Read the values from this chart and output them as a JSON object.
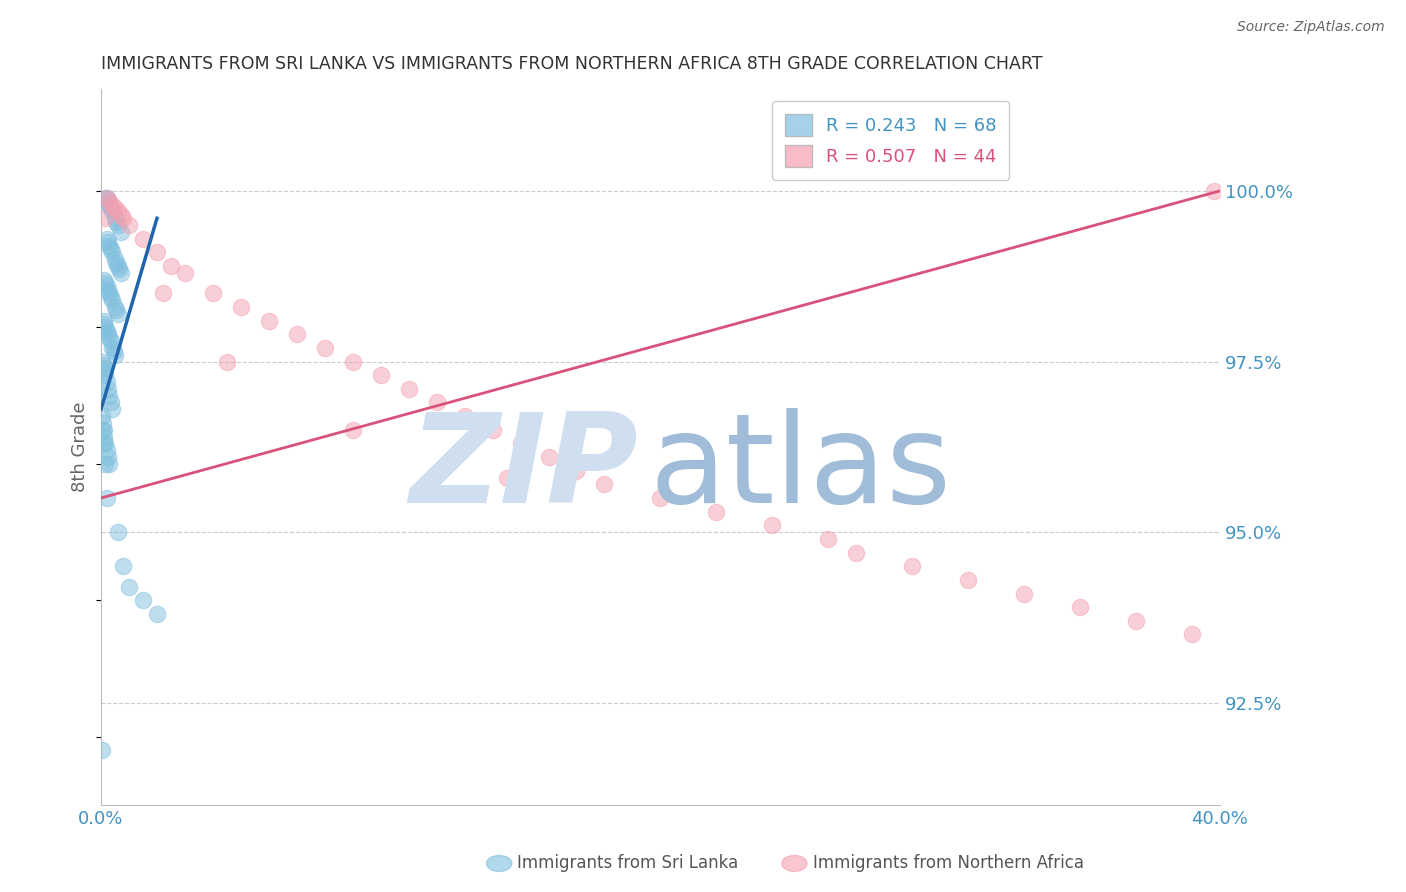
{
  "title": "IMMIGRANTS FROM SRI LANKA VS IMMIGRANTS FROM NORTHERN AFRICA 8TH GRADE CORRELATION CHART",
  "source": "Source: ZipAtlas.com",
  "ylabel": "8th Grade",
  "xlim": [
    0.0,
    40.0
  ],
  "ylim": [
    91.0,
    101.5
  ],
  "yticks": [
    92.5,
    95.0,
    97.5,
    100.0
  ],
  "ytick_labels": [
    "92.5%",
    "95.0%",
    "97.5%",
    "100.0%"
  ],
  "xticks": [
    0,
    10,
    20,
    30,
    40
  ],
  "xtick_labels": [
    "0.0%",
    "",
    "",
    "",
    "40.0%"
  ],
  "series1_label": "Immigrants from Sri Lanka",
  "series1_color": "#7fbfdf",
  "series1_line_color": "#2166ac",
  "series1_R": 0.243,
  "series1_N": 68,
  "series2_label": "Immigrants from Northern Africa",
  "series2_color": "#f4a0b0",
  "series2_line_color": "#d9527a",
  "series2_R": 0.507,
  "series2_N": 44,
  "axis_color": "#4393c3",
  "grid_color": "#cccccc",
  "title_color": "#333333",
  "watermark_zip_color": "#cfdff0",
  "watermark_atlas_color": "#a0bcd8",
  "background_color": "#ffffff",
  "series1_x": [
    0.15,
    0.2,
    0.25,
    0.3,
    0.35,
    0.4,
    0.5,
    0.55,
    0.6,
    0.7,
    0.2,
    0.25,
    0.3,
    0.35,
    0.4,
    0.5,
    0.55,
    0.6,
    0.65,
    0.7,
    0.1,
    0.15,
    0.2,
    0.25,
    0.3,
    0.35,
    0.4,
    0.5,
    0.55,
    0.6,
    0.1,
    0.12,
    0.15,
    0.2,
    0.25,
    0.3,
    0.35,
    0.4,
    0.45,
    0.5,
    0.05,
    0.08,
    0.1,
    0.12,
    0.15,
    0.2,
    0.25,
    0.3,
    0.35,
    0.4,
    0.05,
    0.07,
    0.1,
    0.12,
    0.15,
    0.2,
    0.25,
    0.3,
    0.08,
    0.12,
    0.15,
    0.2,
    0.6,
    0.8,
    1.0,
    1.5,
    2.0,
    0.05
  ],
  "series1_y": [
    99.9,
    99.9,
    99.85,
    99.8,
    99.75,
    99.7,
    99.6,
    99.55,
    99.5,
    99.4,
    99.3,
    99.25,
    99.2,
    99.15,
    99.1,
    99.0,
    98.95,
    98.9,
    98.85,
    98.8,
    98.7,
    98.65,
    98.6,
    98.55,
    98.5,
    98.45,
    98.4,
    98.3,
    98.25,
    98.2,
    98.1,
    98.05,
    98.0,
    97.95,
    97.9,
    97.85,
    97.8,
    97.7,
    97.65,
    97.6,
    97.5,
    97.45,
    97.4,
    97.35,
    97.3,
    97.2,
    97.1,
    97.0,
    96.9,
    96.8,
    96.7,
    96.6,
    96.5,
    96.4,
    96.3,
    96.2,
    96.1,
    96.0,
    96.5,
    96.3,
    96.0,
    95.5,
    95.0,
    94.5,
    94.2,
    94.0,
    93.8,
    91.8
  ],
  "series2_x": [
    0.2,
    0.3,
    0.4,
    0.5,
    0.6,
    0.7,
    0.8,
    1.0,
    1.5,
    2.0,
    2.5,
    3.0,
    4.0,
    5.0,
    6.0,
    7.0,
    8.0,
    9.0,
    10.0,
    11.0,
    12.0,
    13.0,
    14.0,
    15.0,
    16.0,
    17.0,
    18.0,
    20.0,
    22.0,
    24.0,
    26.0,
    27.0,
    29.0,
    31.0,
    33.0,
    35.0,
    37.0,
    39.0,
    39.8,
    0.15,
    2.2,
    4.5,
    9.0,
    14.5
  ],
  "series2_y": [
    99.9,
    99.85,
    99.8,
    99.75,
    99.7,
    99.65,
    99.6,
    99.5,
    99.3,
    99.1,
    98.9,
    98.8,
    98.5,
    98.3,
    98.1,
    97.9,
    97.7,
    97.5,
    97.3,
    97.1,
    96.9,
    96.7,
    96.5,
    96.3,
    96.1,
    95.9,
    95.7,
    95.5,
    95.3,
    95.1,
    94.9,
    94.7,
    94.5,
    94.3,
    94.1,
    93.9,
    93.7,
    93.5,
    100.0,
    99.6,
    98.5,
    97.5,
    96.5,
    95.8
  ]
}
